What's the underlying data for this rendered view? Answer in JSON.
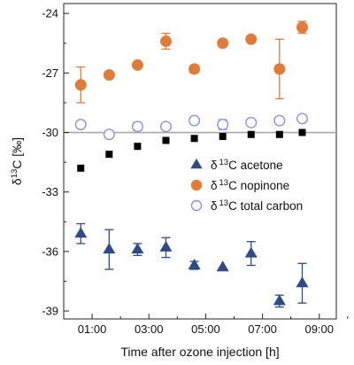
{
  "chart_data": {
    "type": "scatter",
    "title": "",
    "xlabel": "Time after ozone injection [h]",
    "ylabel": "δ13C [‰]",
    "xlim": [
      0,
      9.6
    ],
    "ylim": [
      -39.4,
      -23.5
    ],
    "x_ticks": [
      1,
      3,
      5,
      7,
      9
    ],
    "x_tick_labels": [
      "01:00",
      "03:00",
      "05:00",
      "07:00",
      "09:00"
    ],
    "y_ticks": [
      -24,
      -27,
      -30,
      -33,
      -36,
      -39
    ],
    "y_tick_labels": [
      "-24",
      "-27",
      "-30",
      "-33",
      "-36",
      "-39"
    ],
    "reference_line": {
      "y": -30,
      "color": "#a9a9a9"
    },
    "legend": {
      "position": "center-right",
      "entries": [
        {
          "symbol": "triangle",
          "prefix": "δ",
          "sup": "13",
          "label": "C acetone"
        },
        {
          "symbol": "filled-circle",
          "prefix": "δ",
          "sup": "13",
          "label": "C nopinone"
        },
        {
          "symbol": "open-circle",
          "prefix": "δ",
          "sup": "13",
          "label": "C  total carbon"
        }
      ]
    },
    "colors": {
      "acetone": "#2d4b86",
      "nopinone": "#e07b39",
      "total": "#8a93e0",
      "squares": "#000000"
    },
    "series": [
      {
        "key": "acetone",
        "marker": "triangle",
        "x": [
          0.6,
          1.6,
          2.6,
          3.6,
          4.6,
          5.6,
          6.6,
          7.6,
          8.4
        ],
        "y": [
          -35.1,
          -35.9,
          -35.9,
          -35.8,
          -36.7,
          -36.8,
          -36.1,
          -38.5,
          -37.6
        ],
        "err": [
          0.5,
          1.0,
          0.3,
          0.5,
          0.2,
          0.1,
          0.6,
          0.3,
          1.0
        ]
      },
      {
        "key": "nopinone",
        "marker": "filled-circle",
        "x": [
          0.6,
          1.6,
          2.6,
          3.6,
          4.6,
          5.6,
          6.6,
          7.6,
          8.4
        ],
        "y": [
          -27.6,
          -27.1,
          -26.6,
          -25.4,
          -26.8,
          -25.5,
          -25.3,
          -26.8,
          -24.7
        ],
        "err": [
          0.9,
          0.1,
          0.1,
          0.4,
          0.2,
          0.1,
          0.1,
          1.5,
          0.3
        ]
      },
      {
        "key": "total",
        "marker": "open-circle",
        "x": [
          0.6,
          1.6,
          2.6,
          3.6,
          4.6,
          5.6,
          6.6,
          7.6,
          8.4
        ],
        "y": [
          -29.6,
          -30.1,
          -29.7,
          -29.7,
          -29.4,
          -29.6,
          -29.5,
          -29.4,
          -29.3
        ],
        "err": [
          0.15,
          0.1,
          0.2,
          0.1,
          0.15,
          0.25,
          0.15,
          0.1,
          0.15
        ]
      },
      {
        "key": "squares",
        "marker": "square",
        "x": [
          0.6,
          1.6,
          2.6,
          3.6,
          4.6,
          5.6,
          6.6,
          7.6,
          8.4
        ],
        "y": [
          -31.8,
          -31.1,
          -30.7,
          -30.4,
          -30.3,
          -30.2,
          -30.1,
          -30.1,
          -30.0
        ]
      }
    ]
  }
}
